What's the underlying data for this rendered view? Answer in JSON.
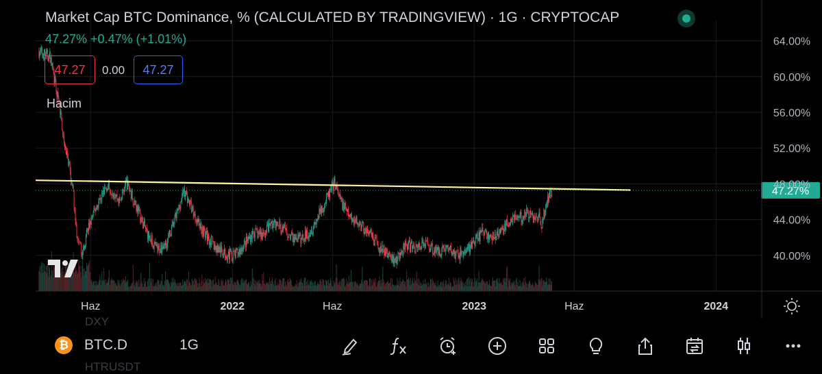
{
  "header": {
    "title": "Market Cap BTC Dominance, % (CALCULATED BY TRADINGVIEW) · 1G · CRYPTOCAP",
    "change": "47.27%  +0.47% (+1.01%)",
    "ohlc_open": "47.27",
    "ohlc_mid": "0.00",
    "ohlc_close": "47.27",
    "volume_label": "Hacim"
  },
  "price_badge": "47.27%",
  "colors": {
    "up": "#22ab94",
    "down": "#f23645",
    "trendline": "#fff59d",
    "badge": "#22ab94",
    "background": "#000000",
    "grid": "#1a1d24"
  },
  "bottom_bar": {
    "symbol_icon": "bitcoin-icon",
    "symbol": "BTC.D",
    "timeframe": "1G",
    "ghost_top": "DXY",
    "ghost_bottom": "HTRUSDT",
    "tools": [
      "pen-icon",
      "fx-icon",
      "alarm-plus-icon",
      "plus-circle-icon",
      "grid-icon",
      "bulb-icon",
      "share-icon",
      "calendar-swap-icon",
      "candles-icon",
      "more-icon"
    ]
  },
  "chart_data": {
    "type": "line",
    "title": "Market Cap BTC Dominance, % (CALCULATED BY TRADINGVIEW) · 1G · CRYPTOCAP",
    "xlabel": "",
    "ylabel": "",
    "ylim": [
      36.0,
      65.5
    ],
    "y_scale": "linear",
    "y_ticks": [
      "64.00%",
      "60.00%",
      "56.00%",
      "52.00%",
      "48.00%",
      "44.00%",
      "40.00%"
    ],
    "y_tick_values": [
      64,
      60,
      56,
      52,
      48,
      44,
      40
    ],
    "x_ticks": [
      "Haz",
      "2022",
      "Haz",
      "2023",
      "Haz",
      "2024"
    ],
    "x_tick_dates": [
      "2021-06-01",
      "2022-01-01",
      "2022-06-01",
      "2023-01-01",
      "2023-06-01",
      "2024-01-01"
    ],
    "xlim": [
      "2021-03-10",
      "2024-03-10"
    ],
    "grid": true,
    "series": [
      {
        "type": "candlestick",
        "points": [
          [
            "2021-03-15",
            62.8
          ],
          [
            "2021-04-01",
            62.2
          ],
          [
            "2021-04-15",
            56.5
          ],
          [
            "2021-04-25",
            51.5
          ],
          [
            "2021-05-05",
            47.5
          ],
          [
            "2021-05-12",
            41.5
          ],
          [
            "2021-05-20",
            40.2
          ],
          [
            "2021-05-28",
            43.0
          ],
          [
            "2021-06-10",
            45.5
          ],
          [
            "2021-06-25",
            47.8
          ],
          [
            "2021-07-05",
            47.2
          ],
          [
            "2021-07-15",
            46.0
          ],
          [
            "2021-07-25",
            48.2
          ],
          [
            "2021-08-10",
            45.3
          ],
          [
            "2021-08-25",
            42.5
          ],
          [
            "2021-09-10",
            40.5
          ],
          [
            "2021-09-25",
            41.6
          ],
          [
            "2021-10-10",
            44.8
          ],
          [
            "2021-10-20",
            47.3
          ],
          [
            "2021-11-05",
            44.5
          ],
          [
            "2021-11-20",
            42.5
          ],
          [
            "2021-12-05",
            41.0
          ],
          [
            "2021-12-20",
            40.2
          ],
          [
            "2022-01-05",
            40.0
          ],
          [
            "2022-01-15",
            40.8
          ],
          [
            "2022-02-01",
            42.5
          ],
          [
            "2022-02-15",
            42.3
          ],
          [
            "2022-03-01",
            43.6
          ],
          [
            "2022-03-15",
            43.2
          ],
          [
            "2022-04-01",
            42.0
          ],
          [
            "2022-04-15",
            41.8
          ],
          [
            "2022-05-01",
            43.0
          ],
          [
            "2022-05-15",
            45.0
          ],
          [
            "2022-05-28",
            47.0
          ],
          [
            "2022-06-05",
            48.2
          ],
          [
            "2022-06-10",
            46.6
          ],
          [
            "2022-06-25",
            44.5
          ],
          [
            "2022-07-10",
            43.6
          ],
          [
            "2022-07-25",
            42.5
          ],
          [
            "2022-08-10",
            40.9
          ],
          [
            "2022-08-25",
            40.0
          ],
          [
            "2022-09-05",
            39.4
          ],
          [
            "2022-09-20",
            41.1
          ],
          [
            "2022-10-05",
            40.9
          ],
          [
            "2022-10-20",
            41.4
          ],
          [
            "2022-11-05",
            40.4
          ],
          [
            "2022-11-20",
            40.9
          ],
          [
            "2022-12-05",
            40.0
          ],
          [
            "2022-12-20",
            40.5
          ],
          [
            "2023-01-05",
            41.8
          ],
          [
            "2023-01-15",
            42.8
          ],
          [
            "2023-01-25",
            41.9
          ],
          [
            "2023-02-05",
            42.3
          ],
          [
            "2023-02-15",
            43.0
          ],
          [
            "2023-03-01",
            44.5
          ],
          [
            "2023-03-10",
            44.0
          ],
          [
            "2023-03-20",
            44.8
          ],
          [
            "2023-04-01",
            44.2
          ],
          [
            "2023-04-08",
            44.6
          ],
          [
            "2023-04-12",
            43.3
          ],
          [
            "2023-04-16",
            44.4
          ],
          [
            "2023-04-20",
            45.6
          ],
          [
            "2023-04-24",
            46.8
          ],
          [
            "2023-04-28",
            47.27
          ]
        ]
      },
      {
        "type": "volume",
        "max": 100
      }
    ],
    "trendline": {
      "from": [
        "2021-03-10",
        48.4
      ],
      "to": [
        "2023-08-25",
        47.3
      ]
    },
    "last_price_line": 47.27
  }
}
